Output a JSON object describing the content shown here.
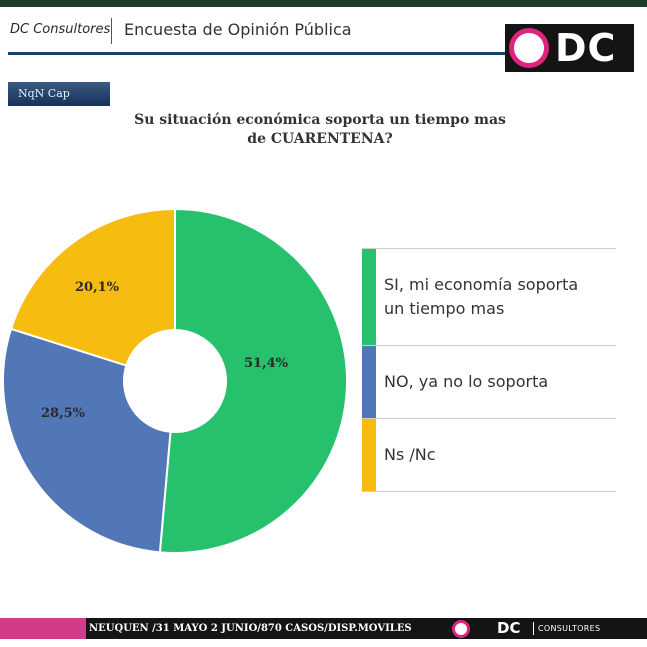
{
  "header": {
    "brand": "DC Consultores",
    "title": "Encuesta de Opinión Pública",
    "logo_text": "DC"
  },
  "badge": "NqN Cap",
  "chart_data": {
    "type": "pie",
    "title_line1": "Su situación económica soporta un tiempo mas",
    "title_line2": "de CUARENTENA?",
    "donut": true,
    "legend_placement": "right",
    "slices": [
      {
        "label": "SI, mi economía soporta un tiempo mas",
        "value": 51.4,
        "value_label": "51,4%",
        "color": "#27c06d"
      },
      {
        "label": "NO,  ya no lo soporta",
        "value": 28.5,
        "value_label": "28,5%",
        "color": "#5177b6"
      },
      {
        "label": "Ns /Nc",
        "value": 20.1,
        "value_label": "20,1%",
        "color": "#f6bc10"
      }
    ]
  },
  "legend": {
    "row1": "SI, mi economía soporta un tiempo mas",
    "row2": "NO,  ya no lo soporta",
    "row3": "Ns /Nc"
  },
  "footer": {
    "text": "NEUQUEN /31 MAYO 2 JUNIO/870 CASOS/DISP.MOVILES",
    "logo_text": "DC",
    "logo_word": "CONSULTORES"
  }
}
